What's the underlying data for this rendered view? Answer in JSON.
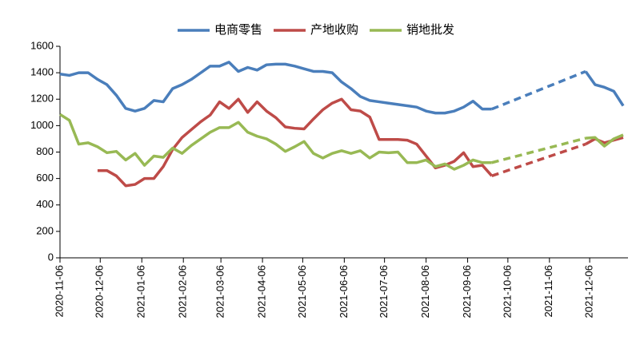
{
  "chart_data": {
    "type": "line",
    "x": [
      "2020-11-06",
      "2020-11-13",
      "2020-11-20",
      "2020-11-27",
      "2020-12-04",
      "2020-12-11",
      "2020-12-18",
      "2020-12-25",
      "2021-01-01",
      "2021-01-08",
      "2021-01-15",
      "2021-01-22",
      "2021-01-29",
      "2021-02-05",
      "2021-02-12",
      "2021-02-19",
      "2021-02-26",
      "2021-03-05",
      "2021-03-12",
      "2021-03-19",
      "2021-03-26",
      "2021-04-02",
      "2021-04-09",
      "2021-04-16",
      "2021-04-23",
      "2021-04-30",
      "2021-05-07",
      "2021-05-14",
      "2021-05-21",
      "2021-05-28",
      "2021-06-04",
      "2021-06-11",
      "2021-06-18",
      "2021-06-25",
      "2021-07-02",
      "2021-07-09",
      "2021-07-16",
      "2021-07-23",
      "2021-07-30",
      "2021-08-06",
      "2021-08-13",
      "2021-08-20",
      "2021-08-27",
      "2021-09-03",
      "2021-09-10",
      "2021-09-17",
      "2021-09-24",
      "2021-10-01",
      "2021-10-08",
      "2021-10-15",
      "2021-10-22",
      "2021-10-29",
      "2021-11-05",
      "2021-11-12",
      "2021-11-19",
      "2021-11-26",
      "2021-12-03",
      "2021-12-10",
      "2021-12-17",
      "2021-12-24",
      "2021-12-31"
    ],
    "series": [
      {
        "name": "电商零售",
        "color": "#4a7ebb",
        "values": [
          1390,
          1380,
          1400,
          1400,
          1350,
          1310,
          1230,
          1130,
          1110,
          1130,
          1190,
          1180,
          1280,
          1310,
          1350,
          1400,
          1450,
          1450,
          1480,
          1410,
          1440,
          1420,
          1460,
          1465,
          1465,
          1450,
          1430,
          1410,
          1410,
          1400,
          1330,
          1280,
          1220,
          1190,
          1180,
          1170,
          1160,
          1150,
          1140,
          1110,
          1095,
          1095,
          1110,
          1140,
          1185,
          1125,
          1125,
          null,
          null,
          null,
          null,
          null,
          null,
          null,
          null,
          null,
          1410,
          1310,
          1290,
          1260,
          1150
        ]
      },
      {
        "name": "产地收购",
        "color": "#be4b48",
        "values": [
          null,
          null,
          null,
          null,
          660,
          660,
          620,
          545,
          555,
          600,
          600,
          690,
          820,
          910,
          970,
          1030,
          1080,
          1180,
          1130,
          1200,
          1100,
          1180,
          1110,
          1060,
          990,
          980,
          975,
          1050,
          1120,
          1170,
          1200,
          1120,
          1110,
          1065,
          895,
          895,
          895,
          890,
          860,
          770,
          680,
          700,
          730,
          795,
          690,
          700,
          620,
          null,
          null,
          null,
          null,
          null,
          null,
          null,
          null,
          null,
          860,
          900,
          870,
          890,
          910
        ]
      },
      {
        "name": "销地批发",
        "color": "#98b954",
        "values": [
          1085,
          1040,
          860,
          870,
          840,
          795,
          805,
          740,
          790,
          700,
          770,
          760,
          830,
          790,
          850,
          900,
          950,
          985,
          985,
          1025,
          950,
          920,
          900,
          860,
          805,
          840,
          880,
          790,
          755,
          790,
          810,
          790,
          810,
          755,
          800,
          795,
          800,
          720,
          720,
          740,
          690,
          710,
          670,
          700,
          740,
          720,
          720,
          null,
          null,
          null,
          null,
          null,
          null,
          null,
          null,
          null,
          905,
          910,
          845,
          900,
          930
        ]
      }
    ],
    "xlim": [
      "2020-11-06",
      "2021-12-31"
    ],
    "xticks": [
      "2020-11-06",
      "2020-12-06",
      "2021-01-06",
      "2021-02-06",
      "2021-03-06",
      "2021-04-06",
      "2021-05-06",
      "2021-06-06",
      "2021-07-06",
      "2021-08-06",
      "2021-09-06",
      "2021-10-06",
      "2021-11-06",
      "2021-12-06"
    ],
    "ylim": [
      0,
      1600
    ],
    "yticks": [
      0,
      200,
      400,
      600,
      800,
      1000,
      1200,
      1400,
      1600
    ],
    "legend": "top",
    "grid": false
  }
}
